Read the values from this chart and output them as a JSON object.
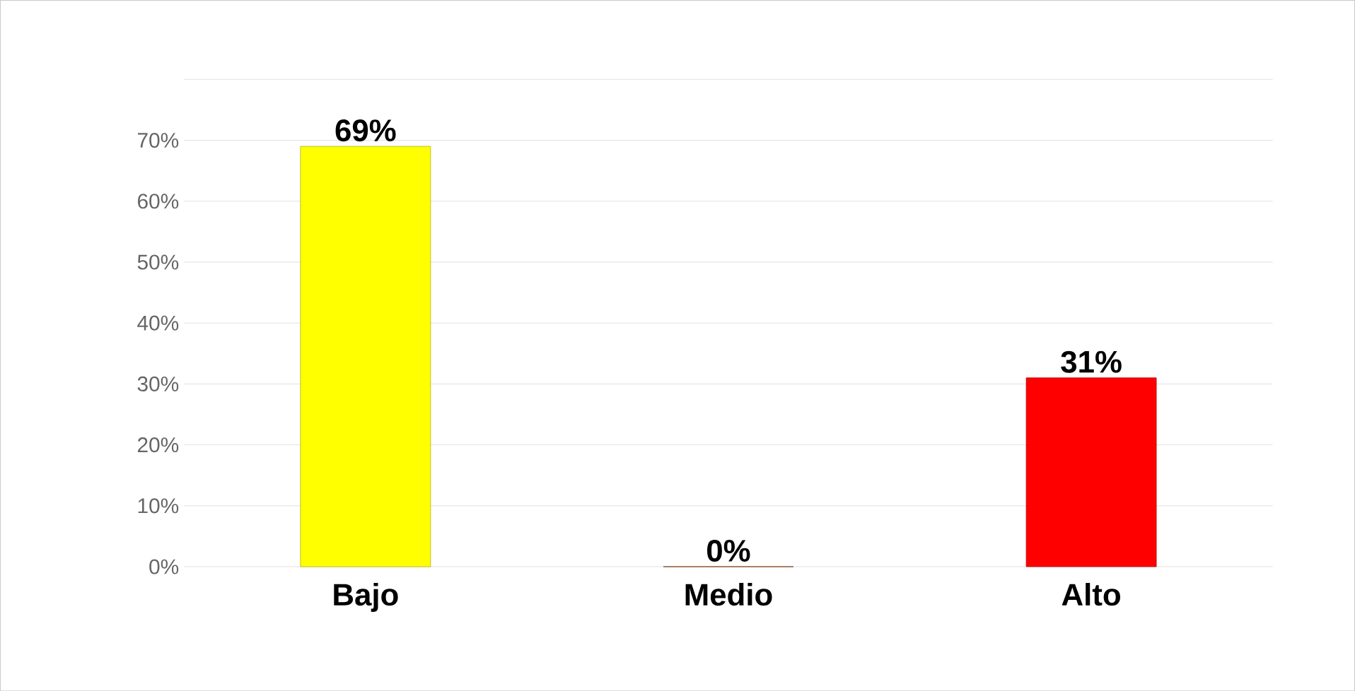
{
  "chart_data": {
    "type": "bar",
    "categories": [
      "Bajo",
      "Medio",
      "Alto"
    ],
    "values": [
      69,
      0,
      31
    ],
    "colors": [
      "#ffff00",
      "#b85c20",
      "#ff0000"
    ],
    "value_labels": [
      "69%",
      "0%",
      "31%"
    ],
    "ylim": [
      0,
      80
    ],
    "yticks": [
      {
        "value": 0,
        "label": "0%"
      },
      {
        "value": 10,
        "label": "10%"
      },
      {
        "value": 20,
        "label": "20%"
      },
      {
        "value": 30,
        "label": "30%"
      },
      {
        "value": 40,
        "label": "40%"
      },
      {
        "value": 50,
        "label": "50%"
      },
      {
        "value": 60,
        "label": "60%"
      },
      {
        "value": 70,
        "label": "70%"
      },
      {
        "value": 80,
        "label": null
      }
    ],
    "grid": "y"
  }
}
